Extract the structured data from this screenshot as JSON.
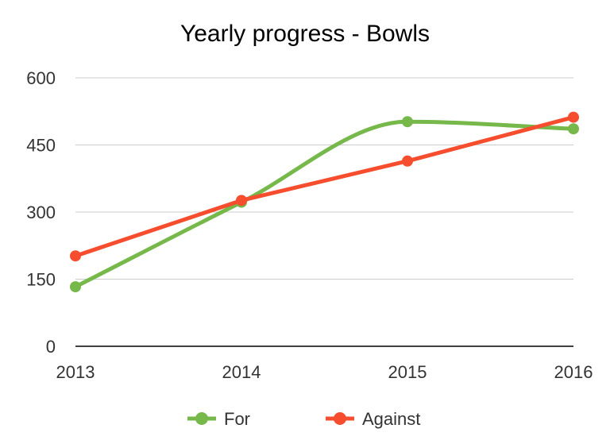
{
  "chart_data": {
    "type": "line",
    "title": "Yearly progress - Bowls",
    "xlabel": "",
    "ylabel": "",
    "categories": [
      "2013",
      "2014",
      "2015",
      "2016"
    ],
    "y_ticks": [
      "0",
      "150",
      "300",
      "450",
      "600"
    ],
    "ylim": [
      0,
      600
    ],
    "grid": true,
    "legend_position": "bottom",
    "series": [
      {
        "name": "For",
        "color": "#76b84a",
        "values": [
          133,
          322,
          502,
          486
        ],
        "smooth": true
      },
      {
        "name": "Against",
        "color": "#f54d2d",
        "values": [
          202,
          326,
          414,
          512
        ],
        "smooth": false
      }
    ]
  }
}
